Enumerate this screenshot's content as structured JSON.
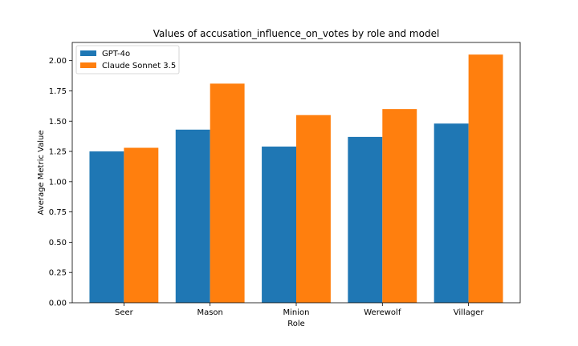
{
  "chart_data": {
    "type": "bar",
    "title": "Values of accusation_influence_on_votes by role and model",
    "xlabel": "Role",
    "ylabel": "Average Metric Value",
    "categories": [
      "Seer",
      "Mason",
      "Minion",
      "Werewolf",
      "Villager"
    ],
    "series": [
      {
        "name": "GPT-4o",
        "color": "#1f77b4",
        "values": [
          1.25,
          1.43,
          1.29,
          1.37,
          1.48
        ]
      },
      {
        "name": "Claude Sonnet 3.5",
        "color": "#ff7f0e",
        "values": [
          1.28,
          1.81,
          1.55,
          1.6,
          2.05
        ]
      }
    ],
    "ylim": [
      0,
      2.15
    ],
    "yticks": [
      "0.00",
      "0.25",
      "0.50",
      "0.75",
      "1.00",
      "1.25",
      "1.50",
      "1.75",
      "2.00"
    ],
    "legend_position": "top-left",
    "grid": false
  }
}
